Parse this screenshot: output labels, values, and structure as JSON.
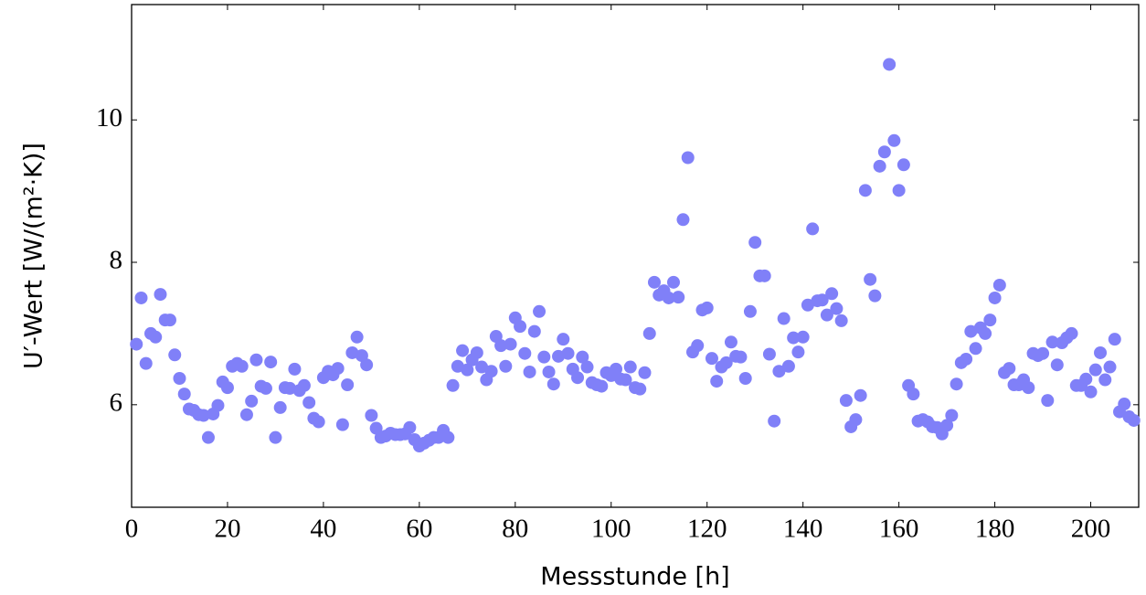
{
  "chart_data": {
    "type": "scatter",
    "x_label": "Messstunde [h]",
    "y_label": "U′-Wert [W/(m²·K)]",
    "color": "#8080f8",
    "xlim": [
      0,
      210
    ],
    "ylim": [
      4.56,
      11.62
    ],
    "xticks": [
      0,
      20,
      40,
      60,
      80,
      100,
      120,
      140,
      160,
      180,
      200
    ],
    "yticks": [
      6,
      8,
      10
    ],
    "grid": false,
    "x": [
      1,
      2,
      3,
      4,
      5,
      6,
      7,
      8,
      9,
      10,
      11,
      12,
      13,
      14,
      15,
      16,
      17,
      18,
      19,
      20,
      21,
      22,
      23,
      24,
      25,
      26,
      27,
      28,
      29,
      30,
      31,
      32,
      33,
      34,
      35,
      36,
      37,
      38,
      39,
      40,
      41,
      42,
      43,
      44,
      45,
      46,
      47,
      48,
      49,
      50,
      51,
      52,
      53,
      54,
      55,
      56,
      57,
      58,
      59,
      60,
      61,
      62,
      63,
      64,
      65,
      66,
      67,
      68,
      69,
      70,
      71,
      72,
      73,
      74,
      75,
      76,
      77,
      78,
      79,
      80,
      81,
      82,
      83,
      84,
      85,
      86,
      87,
      88,
      89,
      90,
      91,
      92,
      93,
      94,
      95,
      96,
      97,
      98,
      99,
      100,
      101,
      102,
      103,
      104,
      105,
      106,
      107,
      108,
      109,
      110,
      111,
      112,
      113,
      114,
      115,
      116,
      117,
      118,
      119,
      120,
      121,
      122,
      123,
      124,
      125,
      126,
      127,
      128,
      129,
      130,
      131,
      132,
      133,
      134,
      135,
      136,
      137,
      138,
      139,
      140,
      141,
      142,
      143,
      144,
      145,
      146,
      147,
      148,
      149,
      150,
      151,
      152,
      153,
      154,
      155,
      156,
      157,
      158,
      159,
      160,
      161,
      162,
      163,
      164,
      165,
      166,
      167,
      168,
      169,
      170,
      171,
      172,
      173,
      174,
      175,
      176,
      177,
      178,
      179,
      180,
      181,
      182,
      183,
      184,
      185,
      186,
      187,
      188,
      189,
      190,
      191,
      192,
      193,
      194,
      195,
      196,
      197,
      198,
      199,
      200,
      201,
      202,
      203,
      204,
      205,
      206,
      207,
      208,
      209
    ],
    "values": [
      6.85,
      7.5,
      6.58,
      7.0,
      6.95,
      7.55,
      7.19,
      7.19,
      6.7,
      6.37,
      6.15,
      5.94,
      5.92,
      5.86,
      5.85,
      5.54,
      5.87,
      5.99,
      6.32,
      6.24,
      6.54,
      6.58,
      6.54,
      5.86,
      6.05,
      6.63,
      6.26,
      6.23,
      6.6,
      5.54,
      5.96,
      6.24,
      6.23,
      6.5,
      6.2,
      6.27,
      6.03,
      5.81,
      5.76,
      6.38,
      6.47,
      6.42,
      6.51,
      5.72,
      6.28,
      6.73,
      6.95,
      6.69,
      6.56,
      5.85,
      5.67,
      5.54,
      5.56,
      5.6,
      5.58,
      5.58,
      5.59,
      5.68,
      5.51,
      5.42,
      5.46,
      5.5,
      5.54,
      5.54,
      5.64,
      5.54,
      6.27,
      6.54,
      6.76,
      6.49,
      6.63,
      6.73,
      6.53,
      6.35,
      6.47,
      6.96,
      6.83,
      6.54,
      6.85,
      7.22,
      7.1,
      6.72,
      6.46,
      7.03,
      7.31,
      6.67,
      6.46,
      6.29,
      6.68,
      6.92,
      6.72,
      6.5,
      6.38,
      6.67,
      6.53,
      6.31,
      6.28,
      6.26,
      6.45,
      6.41,
      6.5,
      6.36,
      6.35,
      6.53,
      6.24,
      6.22,
      6.45,
      7.0,
      7.72,
      7.54,
      7.6,
      7.5,
      7.72,
      7.51,
      8.6,
      9.47,
      6.74,
      6.83,
      7.33,
      7.36,
      6.65,
      6.33,
      6.53,
      6.59,
      6.88,
      6.68,
      6.67,
      6.37,
      7.31,
      8.28,
      7.81,
      7.81,
      6.71,
      5.77,
      6.47,
      7.21,
      6.54,
      6.94,
      6.74,
      6.95,
      7.4,
      8.47,
      7.46,
      7.47,
      7.26,
      7.56,
      7.35,
      7.18,
      6.06,
      5.69,
      5.79,
      6.13,
      9.01,
      7.76,
      7.53,
      9.35,
      9.55,
      10.78,
      9.71,
      9.01,
      9.37,
      6.27,
      6.15,
      5.77,
      5.79,
      5.76,
      5.69,
      5.68,
      5.59,
      5.71,
      5.85,
      6.29,
      6.59,
      6.64,
      7.03,
      6.79,
      7.08,
      7.0,
      7.19,
      7.5,
      7.68,
      6.45,
      6.51,
      6.28,
      6.28,
      6.35,
      6.24,
      6.72,
      6.69,
      6.72,
      6.06,
      6.88,
      6.56,
      6.87,
      6.94,
      7.0,
      6.27,
      6.27,
      6.36,
      6.18,
      6.49,
      6.73,
      6.35,
      6.53,
      6.92,
      5.9,
      6.01,
      5.83,
      5.78
    ]
  }
}
